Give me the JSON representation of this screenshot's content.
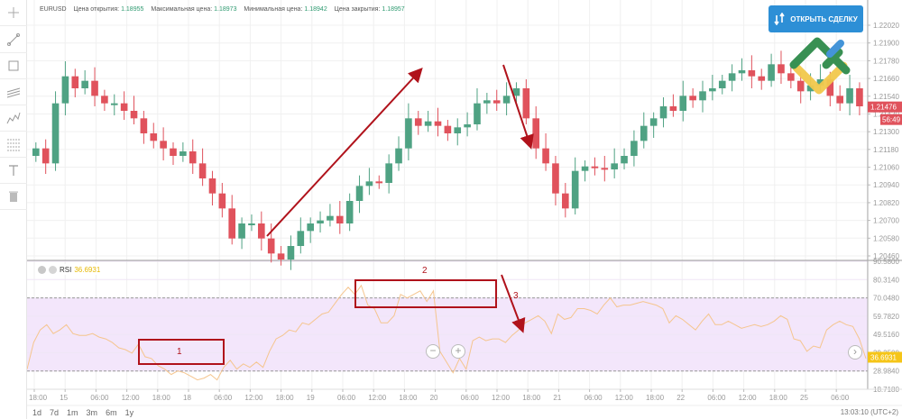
{
  "toolbar": {
    "tools": [
      {
        "name": "crosshair-tool",
        "icon": "crosshair-icon"
      },
      {
        "name": "trendline-tool",
        "icon": "trendline-icon"
      },
      {
        "name": "rectangle-tool",
        "icon": "rectangle-icon"
      },
      {
        "name": "channel-tool",
        "icon": "parallel-channel-icon"
      },
      {
        "name": "pattern-tool",
        "icon": "pattern-icon"
      },
      {
        "name": "fibonacci-tool",
        "icon": "fibonacci-icon"
      },
      {
        "name": "text-tool",
        "icon": "text-icon"
      },
      {
        "name": "delete-tool",
        "icon": "trash-icon"
      }
    ]
  },
  "header": {
    "symbol": "EURUSD",
    "open_label": "Цена открытия:",
    "open_value": "1.18955",
    "high_label": "Максимальная цена:",
    "high_value": "1.18973",
    "low_label": "Минимальная цена:",
    "low_value": "1.18942",
    "close_label": "Цена закрытия:",
    "close_value": "1.18957"
  },
  "open_deal_button": {
    "label": "ОТКРЫТЬ СДЕЛКУ"
  },
  "rsi_panel": {
    "name": "RSI",
    "value": "36.6931"
  },
  "timeframes": [
    "1d",
    "7d",
    "1m",
    "3m",
    "6m",
    "1y"
  ],
  "clock": "13:03:10 (UTC+2)",
  "colors": {
    "bull": "#4fa283",
    "bear": "#e0525c",
    "rsi_line": "#f5c58e",
    "rsi_band": "#f3e6fb",
    "annotation": "#b0121b",
    "button": "#2d8fd6",
    "price_tag": "#e0525c",
    "rsi_tag": "#f5c518"
  },
  "chart_data": [
    {
      "type": "candlestick",
      "title": "EURUSD",
      "y_ticks": [
        "1.22020",
        "1.21900",
        "1.21780",
        "1.21660",
        "1.21540",
        "1.21420",
        "1.21300",
        "1.21180",
        "1.21060",
        "1.20940",
        "1.20820",
        "1.20700",
        "1.20580",
        "1.20460"
      ],
      "ylim": [
        1.2046,
        1.2202
      ],
      "current_price": "1.21476",
      "countdown": "56:49",
      "x_ticks": [
        "18:00",
        "15",
        "06:00",
        "12:00",
        "18:00",
        "18",
        "06:00",
        "12:00",
        "18:00",
        "19",
        "06:00",
        "12:00",
        "18:00",
        "20",
        "06:00",
        "12:00",
        "18:00",
        "21",
        "06:00",
        "12:00",
        "18:00",
        "22",
        "06:00",
        "12:00",
        "18:00",
        "25",
        "06:00"
      ],
      "close_path_approx": [
        1.212,
        1.211,
        1.215,
        1.2168,
        1.216,
        1.2165,
        1.2155,
        1.215,
        1.215,
        1.2145,
        1.214,
        1.213,
        1.2125,
        1.212,
        1.2115,
        1.2118,
        1.211,
        1.21,
        1.209,
        1.208,
        1.206,
        1.207,
        1.207,
        1.206,
        1.205,
        1.2046,
        1.2055,
        1.2065,
        1.207,
        1.2072,
        1.2075,
        1.207,
        1.2085,
        1.2095,
        1.2098,
        1.2097,
        1.211,
        1.212,
        1.214,
        1.2135,
        1.2138,
        1.2135,
        1.213,
        1.2134,
        1.2136,
        1.215,
        1.2152,
        1.215,
        1.2155,
        1.216,
        1.214,
        1.212,
        1.211,
        1.209,
        1.208,
        1.2105,
        1.2108,
        1.2107,
        1.2106,
        1.211,
        1.2115,
        1.2125,
        1.2135,
        1.214,
        1.2148,
        1.2145,
        1.2155,
        1.2152,
        1.2158,
        1.216,
        1.2165,
        1.217,
        1.2172,
        1.2168,
        1.2165,
        1.2176,
        1.217,
        1.2165,
        1.2158,
        1.2162,
        1.2166,
        1.2155,
        1.215,
        1.216,
        1.2148
      ],
      "annotations": [
        {
          "type": "arrow",
          "direction": "up",
          "label": "uptrend"
        },
        {
          "type": "arrow",
          "direction": "down",
          "label": "sharp drop"
        }
      ]
    },
    {
      "type": "line",
      "title": "RSI",
      "current_value": 36.6931,
      "y_ticks": [
        "90.5800",
        "80.3140",
        "70.0480",
        "59.7820",
        "49.5160",
        "39.2500",
        "28.9840",
        "18.7180"
      ],
      "ylim": [
        18.718,
        90.58
      ],
      "overbought": 70.048,
      "oversold": 28.984,
      "values": [
        30,
        45,
        52,
        55,
        50,
        52,
        55,
        50,
        49,
        49,
        50,
        48,
        47,
        45,
        42,
        41,
        39,
        44,
        37,
        36,
        32,
        30,
        27,
        29,
        28,
        26,
        24,
        25,
        27,
        24,
        31,
        35,
        30,
        33,
        31,
        34,
        31,
        40,
        47,
        49,
        52,
        51,
        56,
        55,
        58,
        61,
        62,
        67,
        72,
        76,
        72,
        77,
        66,
        64,
        56,
        56,
        60,
        72,
        70,
        72,
        74,
        68,
        74,
        40,
        34,
        28,
        36,
        30,
        46,
        48,
        46,
        47,
        47,
        45,
        49,
        52,
        56,
        58,
        60,
        57,
        50,
        61,
        58,
        59,
        64,
        64,
        63,
        61,
        66,
        70,
        65,
        66,
        66,
        67,
        68,
        67,
        66,
        64,
        56,
        60,
        58,
        55,
        52,
        57,
        61,
        55,
        55,
        57,
        55,
        53,
        54,
        55,
        54,
        55,
        57,
        60,
        58,
        47,
        46,
        40,
        43,
        42,
        52,
        55,
        57,
        55,
        54,
        47,
        36
      ],
      "annotations": [
        {
          "type": "box",
          "label": "1",
          "region": "oversold"
        },
        {
          "type": "box",
          "label": "2",
          "region": "overbought"
        },
        {
          "type": "arrow",
          "label": "3",
          "direction": "down"
        }
      ]
    }
  ],
  "zoom_controls": {
    "zoom_out": "−",
    "zoom_in": "+",
    "scroll_right": "›"
  }
}
